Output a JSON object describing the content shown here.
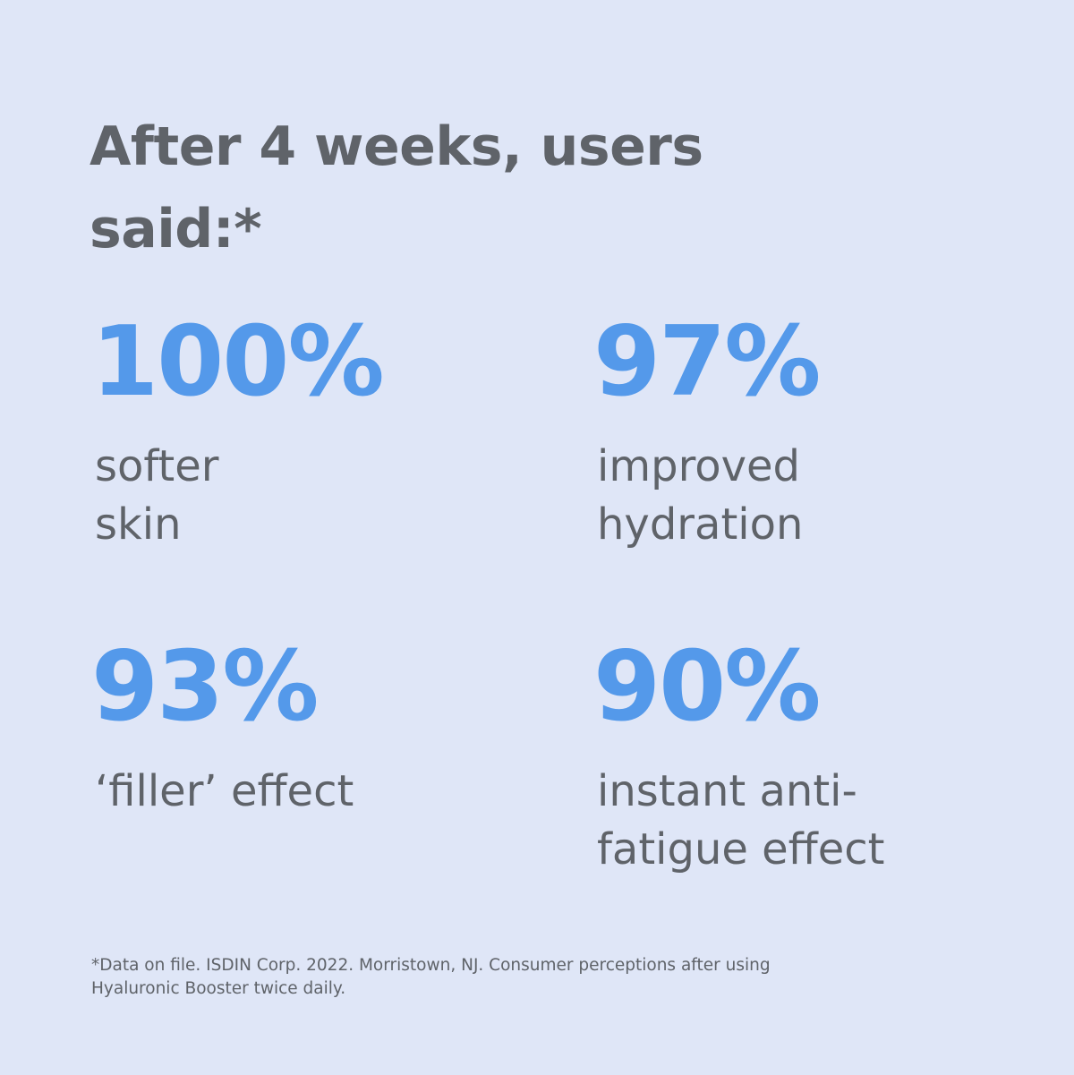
{
  "header": {
    "title_lines": [
      "After 4 weeks, users",
      "said:*"
    ]
  },
  "stats": [
    {
      "value": "100%",
      "label_lines": [
        "softer",
        "skin"
      ]
    },
    {
      "value": "97%",
      "label_lines": [
        "improved",
        "hydration"
      ]
    },
    {
      "value": "93%",
      "label_lines": [
        "‘filler’ effect"
      ]
    },
    {
      "value": "90%",
      "label_lines": [
        "instant anti-",
        "fatigue effect"
      ]
    }
  ],
  "footnote_lines": [
    "*Data on file. ISDIN Corp. 2022. Morristown, NJ. Consumer perceptions after using",
    "Hyaluronic Booster twice daily."
  ]
}
